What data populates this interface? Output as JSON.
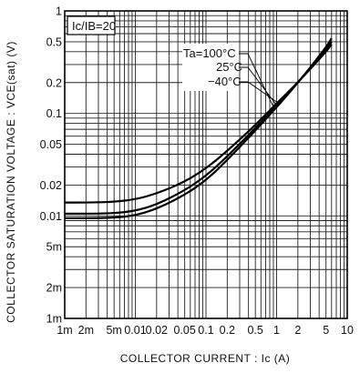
{
  "chart_data": {
    "type": "line",
    "xscale": "log",
    "yscale": "log",
    "xlim": [
      0.001,
      10
    ],
    "ylim": [
      0.001,
      1
    ],
    "grid": true,
    "xlabel": "COLLECTOR  CURRENT : Ic  (A)",
    "ylabel": "COLLECTOR SATURATION VOLTAGE : VCE(sat)  (V)",
    "condition_label": "Ic/IB=20",
    "x_ticks": [
      {
        "value": 0.001,
        "label": "1m"
      },
      {
        "value": 0.002,
        "label": "2m"
      },
      {
        "value": 0.005,
        "label": "5m"
      },
      {
        "value": 0.01,
        "label": "0.01"
      },
      {
        "value": 0.02,
        "label": "0.02"
      },
      {
        "value": 0.05,
        "label": "0.05"
      },
      {
        "value": 0.1,
        "label": "0.1"
      },
      {
        "value": 0.2,
        "label": "0.2"
      },
      {
        "value": 0.5,
        "label": "0.5"
      },
      {
        "value": 1,
        "label": "1"
      },
      {
        "value": 2,
        "label": "2"
      },
      {
        "value": 5,
        "label": "5"
      },
      {
        "value": 10,
        "label": "10"
      }
    ],
    "y_ticks": [
      {
        "value": 1,
        "label": "1"
      },
      {
        "value": 0.5,
        "label": "0.5"
      },
      {
        "value": 0.2,
        "label": "0.2"
      },
      {
        "value": 0.1,
        "label": "0.1"
      },
      {
        "value": 0.05,
        "label": "0.05"
      },
      {
        "value": 0.02,
        "label": "0.02"
      },
      {
        "value": 0.01,
        "label": "0.01"
      },
      {
        "value": 0.005,
        "label": "5m"
      },
      {
        "value": 0.002,
        "label": "2m"
      },
      {
        "value": 0.001,
        "label": "1m"
      }
    ],
    "series": [
      {
        "name": "Ta=100°C",
        "x": [
          0.001,
          0.002,
          0.005,
          0.01,
          0.02,
          0.05,
          0.1,
          0.2,
          0.5,
          1,
          2,
          5,
          6
        ],
        "y": [
          0.0135,
          0.0135,
          0.0137,
          0.0145,
          0.0165,
          0.0215,
          0.029,
          0.043,
          0.077,
          0.125,
          0.2,
          0.4,
          0.47
        ]
      },
      {
        "name": "25°C",
        "x": [
          0.001,
          0.002,
          0.005,
          0.01,
          0.02,
          0.05,
          0.1,
          0.2,
          0.5,
          1,
          2,
          5,
          6
        ],
        "y": [
          0.0105,
          0.0105,
          0.0106,
          0.0112,
          0.0129,
          0.0177,
          0.0245,
          0.038,
          0.072,
          0.12,
          0.2,
          0.42,
          0.5
        ]
      },
      {
        "name": "−40°C",
        "x": [
          0.001,
          0.002,
          0.005,
          0.01,
          0.02,
          0.05,
          0.1,
          0.2,
          0.5,
          1,
          2,
          5,
          6
        ],
        "y": [
          0.0095,
          0.0095,
          0.0096,
          0.0101,
          0.0117,
          0.016,
          0.0222,
          0.035,
          0.068,
          0.115,
          0.198,
          0.44,
          0.54
        ]
      }
    ]
  }
}
